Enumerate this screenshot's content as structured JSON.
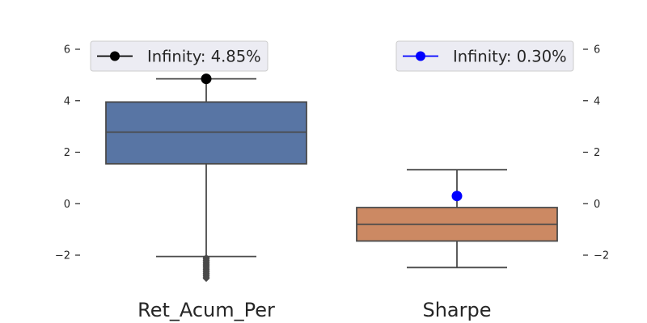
{
  "chart_data": [
    {
      "type": "box",
      "category": "Ret_Acum_Per",
      "color": "#5875a4",
      "yticks": [
        -2,
        0,
        2,
        4,
        6
      ],
      "ylim": [
        -3.0,
        6.6
      ],
      "box": {
        "whisker_low": -2.05,
        "q1": 1.55,
        "median": 2.78,
        "q3": 3.95,
        "whisker_high": 4.85
      },
      "outliers": [
        -2.1,
        -2.15,
        -2.2,
        -2.25,
        -2.3,
        -2.35,
        -2.4,
        -2.45,
        -2.5,
        -2.55,
        -2.6,
        -2.65,
        -2.7,
        -2.75,
        -2.8,
        -2.85,
        -2.9
      ],
      "marker": {
        "value": 4.85,
        "color": "#000000"
      },
      "legend": {
        "label": "Infinity: 4.85%",
        "placement": "top-left",
        "line_color": "#000000"
      }
    },
    {
      "type": "box",
      "category": "Sharpe",
      "color": "#cc8963",
      "yticks": [
        -2,
        0,
        2,
        4,
        6
      ],
      "ylim": [
        -3.0,
        6.6
      ],
      "box": {
        "whisker_low": -2.48,
        "q1": -1.45,
        "median": -0.8,
        "q3": -0.15,
        "whisker_high": 1.32
      },
      "outliers": [],
      "marker": {
        "value": 0.3,
        "color": "#0000ff"
      },
      "legend": {
        "label": "Infinity: 0.30%",
        "placement": "top-right",
        "line_color": "#0000ff"
      }
    }
  ],
  "theme": {
    "line_color": "#4a4a4a",
    "legend_bg": "#eaeaf2",
    "legend_border": "#cccccc"
  }
}
